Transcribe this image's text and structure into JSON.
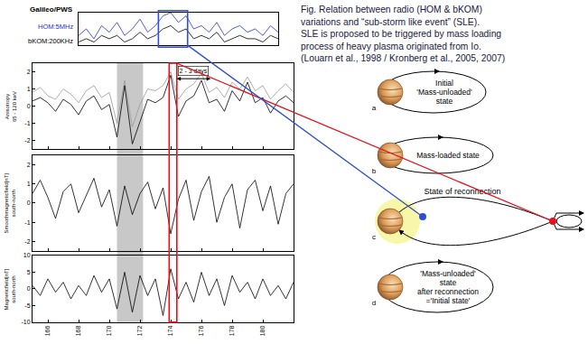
{
  "chart_data": [
    {
      "type": "line",
      "title": "Galileo/PWS",
      "x": [
        168,
        168.5,
        169,
        169.5,
        170,
        170.5,
        171,
        171.5,
        172,
        172.5,
        173,
        173.5,
        174,
        174.5,
        175,
        175.5,
        176,
        176.5,
        177,
        177.5,
        178,
        178.5,
        179,
        179.5,
        180,
        180.5,
        181
      ],
      "series": [
        {
          "name": "HOM:5MHz",
          "color": "#2233cc",
          "values": [
            0.3,
            0.5,
            0.2,
            0.6,
            0.4,
            0.7,
            0.3,
            0.5,
            0.8,
            0.4,
            0.6,
            0.9,
            1.0,
            0.7,
            0.9,
            0.5,
            0.6,
            0.4,
            0.7,
            0.3,
            0.5,
            0.6,
            0.4,
            0.5,
            0.3,
            0.6,
            0.4
          ]
        },
        {
          "name": "bKOM:200KHz",
          "color": "#000000",
          "values": [
            0.1,
            0.2,
            0.1,
            0.3,
            0.2,
            0.3,
            0.1,
            0.2,
            0.4,
            0.2,
            0.3,
            0.5,
            0.6,
            0.4,
            0.5,
            0.2,
            0.3,
            0.2,
            0.4,
            0.1,
            0.2,
            0.3,
            0.2,
            0.2,
            0.1,
            0.3,
            0.2
          ]
        }
      ],
      "xlim": [
        168,
        181
      ],
      "xticks": [],
      "ylim": [
        0,
        1
      ],
      "yticks": [],
      "tick_labels": false,
      "grid": false
    },
    {
      "type": "line",
      "ylabel": "Anisotropy\n65 - 120 keV",
      "x": [
        165,
        165.5,
        166,
        166.5,
        167,
        167.5,
        168,
        168.5,
        169,
        169.5,
        170,
        170.5,
        171,
        171.5,
        172,
        172.5,
        173,
        173.5,
        174,
        174.5,
        175,
        175.5,
        176,
        176.5,
        177,
        177.5,
        178,
        178.5,
        179,
        179.5,
        180,
        180.5,
        181,
        181.5,
        182
      ],
      "series": [
        {
          "color": "#999999",
          "values": [
            0.8,
            1.1,
            0.6,
            0.4,
            1.0,
            0.7,
            0.2,
            0.9,
            1.2,
            0.5,
            0.8,
            -1.0,
            1.5,
            -1.2,
            0.1,
            1.0,
            0.9,
            1.2,
            2.0,
            0.4,
            1.0,
            1.3,
            1.9,
            0.8,
            1.1,
            0.5,
            1.4,
            1.0,
            1.7,
            0.9,
            1.2,
            0.4,
            0.9,
            1.3,
            0.8
          ]
        },
        {
          "color": "#000000",
          "values": [
            0.3,
            0.5,
            0.2,
            -0.3,
            0.4,
            0.1,
            -0.5,
            0.3,
            0.6,
            -0.2,
            0.1,
            -1.8,
            1.2,
            -2.2,
            -0.9,
            0.4,
            0.2,
            0.5,
            1.8,
            -0.6,
            0.3,
            0.6,
            1.5,
            0.2,
            0.4,
            -0.3,
            0.9,
            0.3,
            1.4,
            0.2,
            0.5,
            -0.4,
            0.3,
            0.6,
            0.2
          ]
        }
      ],
      "xlim": [
        165,
        182
      ],
      "xticks": [
        166,
        168,
        170,
        172,
        174,
        176,
        178,
        180
      ],
      "ylim": [
        -2.5,
        2.5
      ],
      "yticks": [
        -2,
        -1,
        0,
        1,
        2
      ],
      "tick_labels": "y",
      "grid": false,
      "annotations": [
        {
          "text": "2 - 3 days",
          "x": [
            174.3,
            176.6
          ],
          "y": 1.6
        }
      ]
    },
    {
      "type": "line",
      "ylabel": "Smoothmagneticfield[nT]\nsouth-north",
      "x": [
        165,
        165.5,
        166,
        166.5,
        167,
        167.5,
        168,
        168.5,
        169,
        169.5,
        170,
        170.5,
        171,
        171.5,
        172,
        172.5,
        173,
        173.5,
        174,
        174.5,
        175,
        175.5,
        176,
        176.5,
        177,
        177.5,
        178,
        178.5,
        179,
        179.5,
        180,
        180.5,
        181,
        181.5,
        182
      ],
      "series": [
        {
          "color": "#000000",
          "values": [
            0.5,
            1.2,
            0.3,
            -0.8,
            0.6,
            1.0,
            -0.5,
            0.4,
            1.3,
            -0.2,
            0.7,
            -1.2,
            0.9,
            -0.6,
            0.5,
            1.1,
            -0.3,
            0.8,
            -1.6,
            0.2,
            1.2,
            -0.9,
            0.6,
            1.4,
            -1.0,
            0.3,
            1.0,
            -1.3,
            0.7,
            1.2,
            -0.4,
            0.9,
            -1.1,
            0.5,
            1.0
          ]
        }
      ],
      "xlim": [
        165,
        182
      ],
      "xticks": [
        166,
        168,
        170,
        172,
        174,
        176,
        178,
        180
      ],
      "ylim": [
        -2.5,
        2.5
      ],
      "yticks": [
        -2,
        -1,
        0,
        1,
        2
      ],
      "tick_labels": "y",
      "grid": false
    },
    {
      "type": "line",
      "ylabel": "Magneticfield[nT]\nsouth-north",
      "x": [
        165,
        165.5,
        166,
        166.5,
        167,
        167.5,
        168,
        168.5,
        169,
        169.5,
        170,
        170.5,
        171,
        171.5,
        172,
        172.5,
        173,
        173.5,
        174,
        174.5,
        175,
        175.5,
        176,
        176.5,
        177,
        177.5,
        178,
        178.5,
        179,
        179.5,
        180,
        180.5,
        181,
        181.5,
        182
      ],
      "series": [
        {
          "color": "#000000",
          "values": [
            1,
            -2,
            3,
            -1,
            2,
            -3,
            1,
            -2,
            4,
            -1,
            3,
            -6,
            5,
            -7,
            4,
            -2,
            3,
            -8,
            6,
            -3,
            2,
            -4,
            5,
            -2,
            3,
            -5,
            4,
            -1,
            2,
            -3,
            3,
            -2,
            1,
            -3,
            2
          ]
        }
      ],
      "xlim": [
        165,
        182
      ],
      "xticks": [
        166,
        168,
        170,
        172,
        174,
        176,
        178,
        180
      ],
      "ylim": [
        -10,
        10
      ],
      "yticks": [
        -10,
        -5,
        0,
        5,
        10
      ],
      "tick_labels": true,
      "grid": false
    }
  ],
  "highlights": [
    {
      "style": "band",
      "xlim": [
        170.5,
        172.2
      ],
      "color": "#c8c8c8"
    },
    {
      "style": "box",
      "xlim": [
        173.9,
        174.4
      ],
      "color": "#e8101a"
    },
    {
      "style": "box",
      "xlim": [
        173.2,
        175.1
      ],
      "color": "#2f4fd0",
      "panel": 0
    }
  ],
  "diagram": {
    "caption": [
      "Fig.  Relation between radio (HOM & bKOM)",
      "variations and “sub-storm like event” (SLE).",
      "SLE is proposed to be triggered by mass loading",
      "process of heavy plasma originated from Io.",
      "(Louarn et al., 1998 / Kronberg et al., 2005, 2007)"
    ],
    "states": [
      {
        "label": "a",
        "text": [
          "Initial",
          "'Mass-unloaded'",
          "state"
        ]
      },
      {
        "label": "b",
        "text": [
          "Mass-loaded state"
        ]
      },
      {
        "label": "c",
        "text": [
          "State of reconnection"
        ]
      },
      {
        "label": "d",
        "text": [
          "'Mass-unloaded'",
          "state",
          "after reconnection",
          "='Initial state'"
        ]
      }
    ]
  }
}
